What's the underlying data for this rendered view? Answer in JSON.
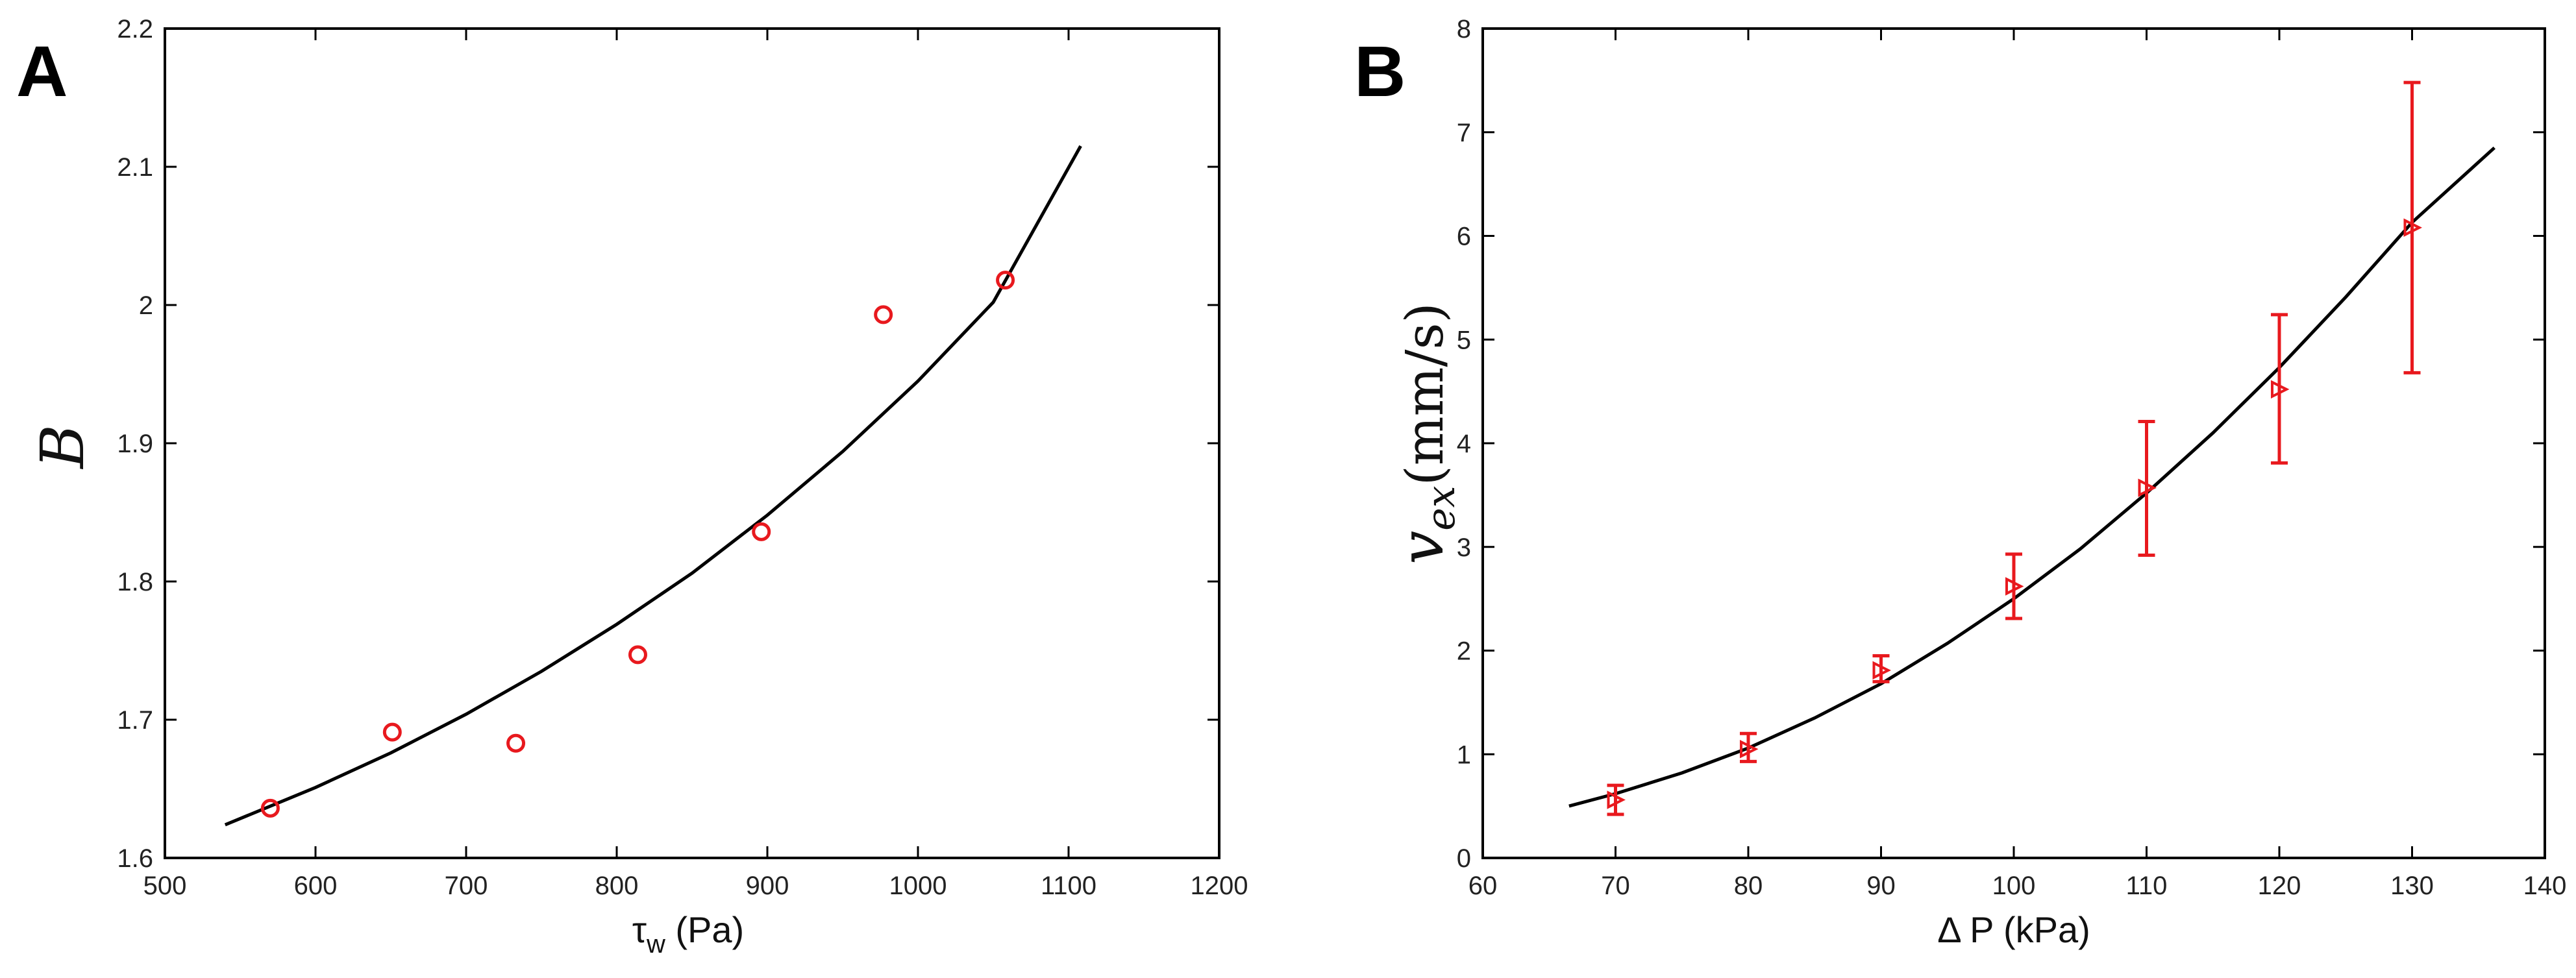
{
  "chart_data": [
    {
      "panel": "A",
      "type": "scatter",
      "ylabel": "B",
      "xlabel": {
        "main": "τ",
        "sub": "w",
        "unit": " (Pa)"
      },
      "xlim": [
        500,
        1200
      ],
      "ylim": [
        1.6,
        2.2
      ],
      "xticks": [
        500,
        600,
        700,
        800,
        900,
        1000,
        1100,
        1200
      ],
      "xtick_labels": [
        "500",
        "600",
        "700",
        "800",
        "900",
        "1000",
        "1100",
        "1200"
      ],
      "yticks": [
        1.6,
        1.7,
        1.8,
        1.9,
        2.0,
        2.1,
        2.2
      ],
      "ytick_labels": [
        "1.6",
        "1.7",
        "1.8",
        "1.9",
        "2",
        "2.1",
        "2.2"
      ],
      "points": {
        "x": [
          570,
          651,
          733,
          814,
          896,
          977,
          1058
        ],
        "y": [
          1.636,
          1.691,
          1.683,
          1.747,
          1.836,
          1.993,
          2.018
        ],
        "marker": "circle",
        "color": "#e8191e"
      },
      "fit": {
        "color": "#000000",
        "x": [
          540,
          600,
          650,
          700,
          750,
          800,
          850,
          900,
          950,
          1000,
          1050,
          1108
        ],
        "y": [
          1.624,
          1.651,
          1.676,
          1.704,
          1.735,
          1.769,
          1.806,
          1.848,
          1.894,
          1.945,
          2.002,
          2.115
        ]
      }
    },
    {
      "panel": "B",
      "type": "scatter",
      "ylabel": {
        "main": "v",
        "sub": "ex",
        "unit": "(mm/s)"
      },
      "xlabel": "Δ P (kPa)",
      "xlim": [
        60,
        140
      ],
      "ylim": [
        0,
        8
      ],
      "xticks": [
        60,
        70,
        80,
        90,
        100,
        110,
        120,
        130,
        140
      ],
      "xtick_labels": [
        "60",
        "70",
        "80",
        "90",
        "100",
        "110",
        "120",
        "130",
        "140"
      ],
      "yticks": [
        0,
        1,
        2,
        3,
        4,
        5,
        6,
        7,
        8
      ],
      "ytick_labels": [
        "0",
        "1",
        "2",
        "3",
        "4",
        "5",
        "6",
        "7",
        "8"
      ],
      "points": {
        "x": [
          70,
          80,
          90,
          100,
          110,
          120,
          130
        ],
        "y": [
          0.56,
          1.05,
          1.81,
          2.62,
          3.57,
          4.52,
          6.08
        ],
        "err_low": [
          0.42,
          0.93,
          1.7,
          2.31,
          2.92,
          3.81,
          4.68
        ],
        "err_high": [
          0.7,
          1.2,
          1.95,
          2.93,
          4.21,
          5.24,
          7.48
        ],
        "marker": "triangle-right",
        "color": "#e8191e"
      },
      "fit": {
        "color": "#000000",
        "x": [
          66.5,
          70,
          75,
          80,
          85,
          90,
          95,
          100,
          105,
          110,
          115,
          120,
          125,
          130,
          136.2
        ],
        "y": [
          0.5,
          0.62,
          0.82,
          1.06,
          1.35,
          1.68,
          2.07,
          2.5,
          2.98,
          3.52,
          4.1,
          4.73,
          5.41,
          6.13,
          6.85
        ]
      }
    }
  ]
}
